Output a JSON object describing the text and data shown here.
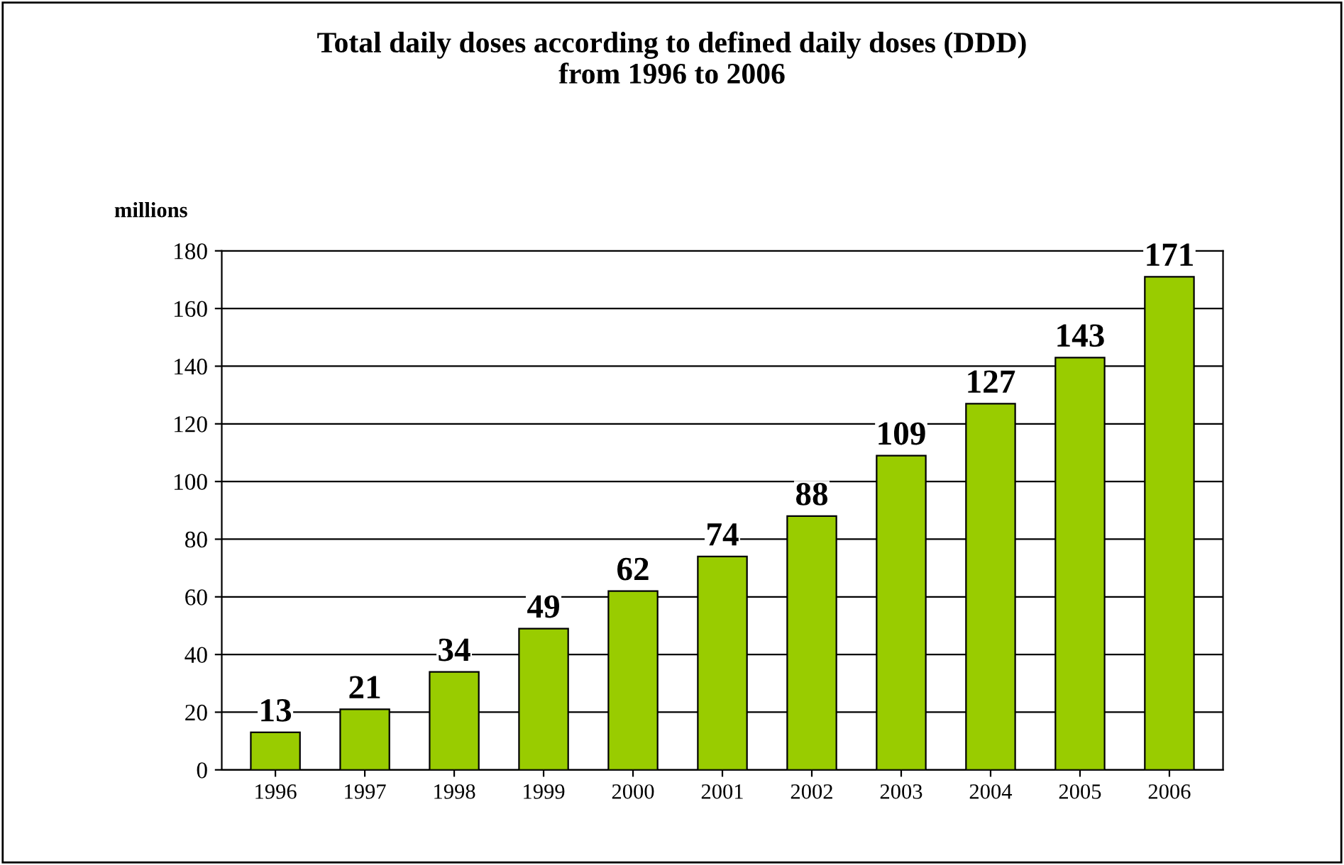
{
  "chart_data": {
    "type": "bar",
    "title": "Total daily doses according to defined daily doses (DDD)\nfrom 1996 to 2006",
    "ylabel": "millions",
    "categories": [
      "1996",
      "1997",
      "1998",
      "1999",
      "2000",
      "2001",
      "2002",
      "2003",
      "2004",
      "2005",
      "2006"
    ],
    "values": [
      13,
      21,
      34,
      49,
      62,
      74,
      88,
      109,
      127,
      143,
      171
    ],
    "color": "#99cc00",
    "ylim": [
      0,
      180
    ],
    "yticks": [
      0,
      20,
      40,
      60,
      80,
      100,
      120,
      140,
      160,
      180
    ],
    "grid": "y",
    "data_labels": true
  }
}
